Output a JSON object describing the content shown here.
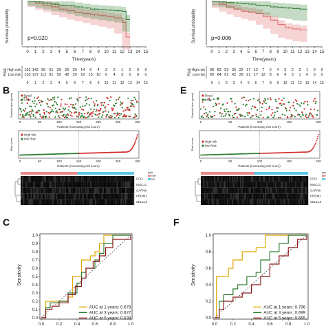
{
  "panel_labels": {
    "b": "B",
    "e": "E",
    "c": "C",
    "f": "F"
  },
  "km_left": {
    "pvalue": "p=0.020",
    "xlabel": "Time(years)",
    "ylabel": "Survival probability",
    "ticks": [
      "0",
      "1",
      "2",
      "3",
      "4",
      "5",
      "6",
      "7",
      "8",
      "9",
      "10",
      "11",
      "12",
      "13",
      "14",
      "15"
    ],
    "risk_title": "Risk",
    "rows": [
      {
        "label": "High risk",
        "color": "#e06666",
        "counts": [
          "152",
          "142",
          "99",
          "61",
          "39",
          "26",
          "20",
          "14",
          "6",
          "4",
          "2",
          "2",
          "1",
          "0",
          "0",
          "0"
        ]
      },
      {
        "label": "Low risk",
        "color": "#2e7d32",
        "counts": [
          "153",
          "137",
          "112",
          "81",
          "55",
          "42",
          "29",
          "19",
          "15",
          "10",
          "6",
          "4",
          "3",
          "0",
          "0",
          "0"
        ]
      }
    ]
  },
  "km_right": {
    "pvalue": "p=0.006",
    "xlabel": "Time(years)",
    "ylabel": "Survival probability",
    "ticks": [
      "0",
      "1",
      "2",
      "3",
      "4",
      "5",
      "6",
      "7",
      "8",
      "9",
      "10",
      "11",
      "12",
      "13",
      "14",
      "15"
    ],
    "risk_title": "Risk",
    "rows": [
      {
        "label": "High risk",
        "color": "#e06666",
        "counts": [
          "98",
          "83",
          "53",
          "35",
          "22",
          "17",
          "12",
          "7",
          "5",
          "4",
          "3",
          "2",
          "2",
          "1",
          "0",
          "0"
        ]
      },
      {
        "label": "Low risk",
        "color": "#2e7d32",
        "counts": [
          "99",
          "84",
          "62",
          "42",
          "28",
          "21",
          "17",
          "12",
          "8",
          "6",
          "4",
          "3",
          "1",
          "0",
          "0",
          "0"
        ]
      }
    ]
  },
  "status_left": {
    "ylabel": "Survival time (years)",
    "xlabel": "Patients (increasing risk score)",
    "legend": [
      "Dead",
      "Alive"
    ],
    "xticks": [
      "0",
      "50",
      "100",
      "150",
      "200",
      "250",
      "300"
    ],
    "yticks": [
      "0",
      "5",
      "10",
      "15"
    ]
  },
  "status_right": {
    "ylabel": "Survival time (years)",
    "xlabel": "Patients (increasing risk score)",
    "legend": [
      "Dead",
      "Alive"
    ],
    "xticks": [
      "0",
      "50",
      "100",
      "150",
      "200"
    ],
    "yticks": [
      "0",
      "5",
      "10",
      "15"
    ]
  },
  "score_left": {
    "ylabel": "Risk score",
    "xlabel": "Patients (increasing risk score)",
    "legend": [
      "High risk",
      "low Risk"
    ],
    "xticks": [
      "0",
      "50",
      "100",
      "150",
      "200",
      "250",
      "300"
    ]
  },
  "score_right": {
    "ylabel": "Risk score",
    "xlabel": "Patients (increasing risk score)",
    "legend": [
      "High risk",
      "low Risk"
    ],
    "xticks": [
      "0",
      "50",
      "100",
      "150",
      "200"
    ]
  },
  "heat_left": {
    "genes": [
      "CFI2",
      "MUC21",
      "CAPN8",
      "PRDM1",
      "SEL1L3"
    ],
    "legend_title": "type",
    "legend": [
      "high",
      "low"
    ]
  },
  "heat_right": {
    "genes": [
      "CFI2",
      "MUC21",
      "CAPN8",
      "PRDM1",
      "SEL1L3"
    ],
    "legend_title": "type",
    "legend": [
      "high",
      "low"
    ]
  },
  "roc_left": {
    "ylabel": "Sensitivity",
    "yticks": [
      "0.0",
      "0.1",
      "0.2",
      "0.3",
      "0.4",
      "0.5",
      "0.6",
      "0.7",
      "0.8",
      "0.9",
      "1.0"
    ],
    "xticks": [
      "0.0",
      "0.2",
      "0.4",
      "0.6",
      "0.8",
      "1.0"
    ],
    "legend": [
      {
        "label": "AUC at 1 years: 0.678",
        "color": "#e0a800"
      },
      {
        "label": "AUC at 3 years: 0.627",
        "color": "#2e7d32"
      },
      {
        "label": "AUC at 5 years: 0.638",
        "color": "#8b1a1a"
      }
    ]
  },
  "roc_right": {
    "ylabel": "Sensitivity",
    "yticks": [
      "0.0",
      "0.2",
      "0.4",
      "0.6",
      "0.8",
      "1.0"
    ],
    "xticks": [
      "0.0",
      "0.2",
      "0.4",
      "0.6",
      "0.8",
      "1.0"
    ],
    "legend": [
      {
        "label": "AUC at 1 years: 0.796",
        "color": "#e0a800"
      },
      {
        "label": "AUC at 3 years: 0.699",
        "color": "#2e7d32"
      },
      {
        "label": "AUC at 5 years: 0.665",
        "color": "#8b1a1a"
      }
    ]
  },
  "chart_data": [
    {
      "type": "line",
      "title": "",
      "xlabel": "Time(years)",
      "ylabel": "Survival probability",
      "xlim": [
        0,
        15
      ],
      "ylim": [
        0,
        1
      ],
      "series": [
        {
          "name": "High risk",
          "x": [
            0,
            1,
            2,
            3,
            4,
            5,
            6,
            7,
            8,
            9,
            10,
            11,
            12,
            12.5,
            13
          ],
          "y": [
            1,
            0.97,
            0.93,
            0.9,
            0.86,
            0.83,
            0.8,
            0.78,
            0.76,
            0.74,
            0.72,
            0.7,
            0.62,
            0.35,
            0.35
          ]
        },
        {
          "name": "Low risk",
          "x": [
            0,
            1,
            2,
            3,
            4,
            5,
            6,
            7,
            8,
            9,
            10,
            11,
            12,
            12.5,
            13
          ],
          "y": [
            1,
            0.99,
            0.97,
            0.95,
            0.93,
            0.92,
            0.9,
            0.88,
            0.86,
            0.85,
            0.84,
            0.83,
            0.82,
            0.67,
            0.67
          ]
        }
      ]
    },
    {
      "type": "line",
      "title": "",
      "xlabel": "Time(years)",
      "ylabel": "Survival probability",
      "xlim": [
        0,
        15
      ],
      "ylim": [
        0,
        1
      ],
      "series": [
        {
          "name": "High risk",
          "x": [
            0,
            1,
            2,
            3,
            4,
            5,
            6,
            7,
            8,
            9,
            10,
            11,
            12,
            13
          ],
          "y": [
            1,
            0.95,
            0.9,
            0.86,
            0.82,
            0.8,
            0.78,
            0.72,
            0.66,
            0.58,
            0.52,
            0.5,
            0.48,
            0.48
          ]
        },
        {
          "name": "Low risk",
          "x": [
            0,
            1,
            2,
            3,
            4,
            5,
            6,
            7,
            8,
            9,
            10,
            11,
            12,
            13
          ],
          "y": [
            1,
            0.99,
            0.98,
            0.97,
            0.96,
            0.95,
            0.93,
            0.92,
            0.9,
            0.89,
            0.88,
            0.87,
            0.86,
            0.86
          ]
        }
      ]
    },
    {
      "type": "line",
      "title": "",
      "xlabel": "",
      "ylabel": "Sensitivity",
      "xlim": [
        0,
        1
      ],
      "ylim": [
        0,
        1
      ],
      "series": [
        {
          "name": "AUC at 1 years: 0.678",
          "x": [
            0,
            0.05,
            0.05,
            0.15,
            0.3,
            0.35,
            0.45,
            0.45,
            0.55,
            0.6,
            0.65,
            0.7,
            0.75,
            1
          ],
          "y": [
            0,
            0,
            0.2,
            0.2,
            0.25,
            0.5,
            0.55,
            0.7,
            0.75,
            0.8,
            0.9,
            1,
            1,
            1
          ]
        },
        {
          "name": "AUC at 3 years: 0.627",
          "x": [
            0,
            0.05,
            0.1,
            0.2,
            0.3,
            0.4,
            0.45,
            0.5,
            0.6,
            0.65,
            0.7,
            0.8,
            1
          ],
          "y": [
            0,
            0.12,
            0.18,
            0.2,
            0.3,
            0.42,
            0.55,
            0.6,
            0.7,
            0.78,
            0.9,
            1,
            1
          ]
        },
        {
          "name": "AUC at 5 years: 0.638",
          "x": [
            0,
            0.05,
            0.12,
            0.2,
            0.3,
            0.38,
            0.45,
            0.5,
            0.58,
            0.65,
            0.72,
            0.8,
            1
          ],
          "y": [
            0,
            0.1,
            0.14,
            0.18,
            0.28,
            0.38,
            0.48,
            0.6,
            0.68,
            0.75,
            0.85,
            0.95,
            1
          ]
        }
      ]
    },
    {
      "type": "line",
      "title": "",
      "xlabel": "",
      "ylabel": "Sensitivity",
      "xlim": [
        0,
        1
      ],
      "ylim": [
        0,
        1
      ],
      "series": [
        {
          "name": "AUC at 1 years: 0.796",
          "x": [
            0,
            0.02,
            0.02,
            0.1,
            0.15,
            0.2,
            0.3,
            0.45,
            0.55,
            0.62,
            1
          ],
          "y": [
            0,
            0,
            0.5,
            0.5,
            0.6,
            0.7,
            0.8,
            0.85,
            1,
            1,
            1
          ]
        },
        {
          "name": "AUC at 3 years: 0.699",
          "x": [
            0,
            0.05,
            0.1,
            0.2,
            0.25,
            0.35,
            0.45,
            0.5,
            0.6,
            0.7,
            0.8,
            1
          ],
          "y": [
            0,
            0.2,
            0.28,
            0.35,
            0.4,
            0.5,
            0.55,
            0.7,
            0.8,
            0.9,
            1,
            1
          ]
        },
        {
          "name": "AUC at 5 years: 0.665",
          "x": [
            0,
            0.05,
            0.1,
            0.2,
            0.3,
            0.4,
            0.5,
            0.6,
            0.7,
            0.8,
            0.9,
            1
          ],
          "y": [
            0,
            0.1,
            0.2,
            0.25,
            0.3,
            0.4,
            0.5,
            0.65,
            0.75,
            0.85,
            0.95,
            1
          ]
        }
      ]
    }
  ]
}
